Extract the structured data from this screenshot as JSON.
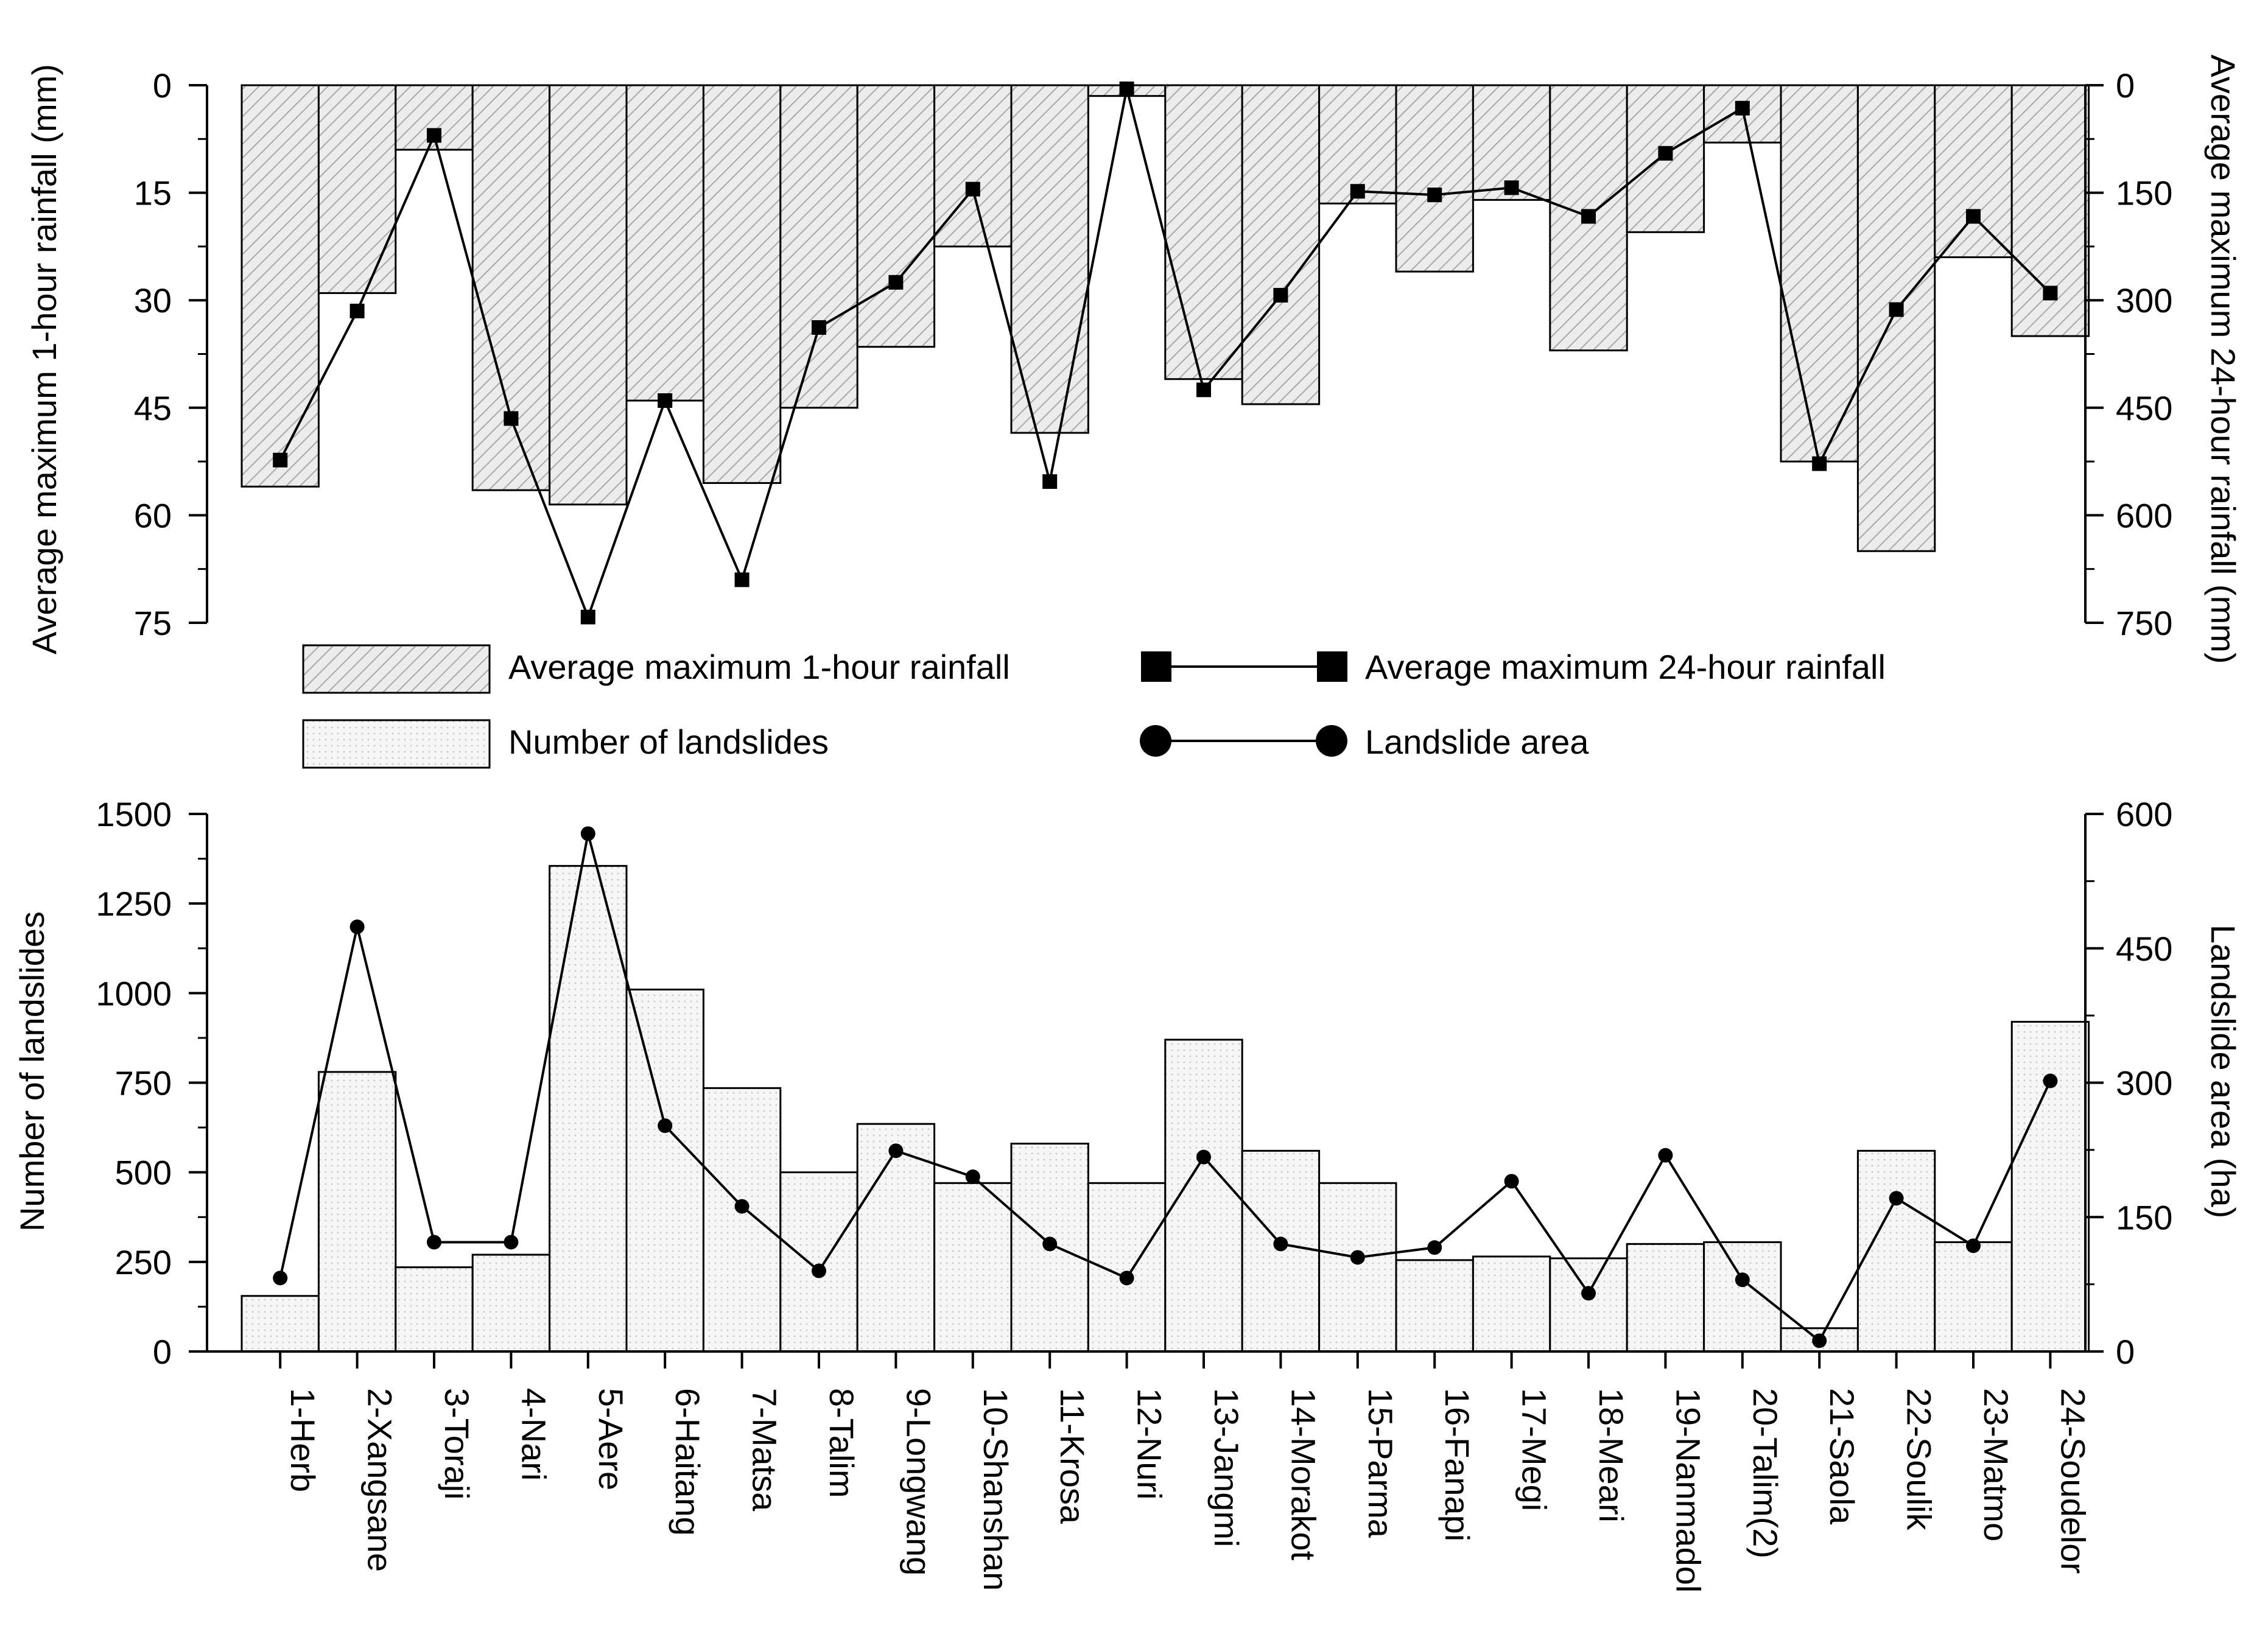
{
  "chart_data": [
    {
      "type": "bar",
      "inverted_y": true,
      "categories": [
        "1-Herb",
        "2-Xangsane",
        "3-Toraji",
        "4-Nari",
        "5-Aere",
        "6-Haitang",
        "7-Matsa",
        "8-Talim",
        "9-Longwang",
        "10-Shanshan",
        "11-Krosa",
        "12-Nuri",
        "13-Jangmi",
        "14-Morakot",
        "15-Parma",
        "16-Fanapi",
        "17-Megi",
        "18-Meari",
        "19-Nanmadol",
        "20-Talim(2)",
        "21-Saola",
        "22-Soulik",
        "23-Matmo",
        "24-Soudelor"
      ],
      "series": [
        {
          "name": "Average maximum 1-hour rainfall",
          "kind": "bar",
          "axis": "left",
          "values": [
            56,
            29,
            9,
            56.5,
            58.5,
            44,
            55.5,
            45,
            36.5,
            22.5,
            48.5,
            1.5,
            41,
            44.5,
            16.5,
            26,
            16,
            37,
            20.5,
            8,
            52.5,
            65,
            24,
            35
          ]
        },
        {
          "name": "Average maximum 24-hour rainfall",
          "kind": "line",
          "marker": "square",
          "axis": "right",
          "values": [
            523,
            315,
            70,
            465,
            742,
            440,
            690,
            338,
            275,
            145,
            553,
            5,
            425,
            293,
            148,
            153,
            143,
            183,
            95,
            32,
            528,
            313,
            183,
            290
          ]
        }
      ],
      "y_left": {
        "label": "Average maximum 1-hour rainfall (mm)",
        "range": [
          0,
          75
        ],
        "ticks": [
          "0",
          "15",
          "30",
          "45",
          "60",
          "75"
        ]
      },
      "y_right": {
        "label": "Average maximum 24-hour rainfall (mm)",
        "range": [
          0,
          750
        ],
        "ticks": [
          "0",
          "150",
          "300",
          "450",
          "600",
          "750"
        ]
      },
      "legend": [
        {
          "label": "Average maximum 1-hour rainfall",
          "symbol": "hatched-bar"
        },
        {
          "label": "Average maximum 24-hour rainfall",
          "symbol": "square-line"
        },
        {
          "label": "Number of landslides",
          "symbol": "dotted-bar"
        },
        {
          "label": "Landslide area",
          "symbol": "circle-line"
        }
      ]
    },
    {
      "type": "bar",
      "categories": [
        "1-Herb",
        "2-Xangsane",
        "3-Toraji",
        "4-Nari",
        "5-Aere",
        "6-Haitang",
        "7-Matsa",
        "8-Talim",
        "9-Longwang",
        "10-Shanshan",
        "11-Krosa",
        "12-Nuri",
        "13-Jangmi",
        "14-Morakot",
        "15-Parma",
        "16-Fanapi",
        "17-Megi",
        "18-Meari",
        "19-Nanmadol",
        "20-Talim(2)",
        "21-Saola",
        "22-Soulik",
        "23-Matmo",
        "24-Soudelor"
      ],
      "series": [
        {
          "name": "Number of landslides",
          "kind": "bar",
          "axis": "left",
          "values": [
            155,
            780,
            235,
            270,
            1355,
            1010,
            735,
            500,
            635,
            470,
            580,
            470,
            870,
            560,
            470,
            255,
            265,
            260,
            300,
            305,
            65,
            560,
            305,
            920
          ]
        },
        {
          "name": "Landslide area",
          "kind": "line",
          "marker": "circle",
          "axis": "right",
          "values": [
            82,
            474,
            122,
            122,
            578,
            252,
            162,
            90,
            224,
            195,
            120,
            82,
            217,
            120,
            105,
            116,
            190,
            65,
            219,
            80,
            12,
            171,
            118,
            302
          ]
        }
      ],
      "y_left": {
        "label": "Number of landslides",
        "range": [
          0,
          1500
        ],
        "ticks": [
          "0",
          "250",
          "500",
          "750",
          "1000",
          "1250",
          "1500"
        ]
      },
      "y_right": {
        "label": "Landslide area (ha)",
        "range": [
          0,
          600
        ],
        "ticks": [
          "0",
          "150",
          "300",
          "450",
          "600"
        ]
      }
    }
  ]
}
